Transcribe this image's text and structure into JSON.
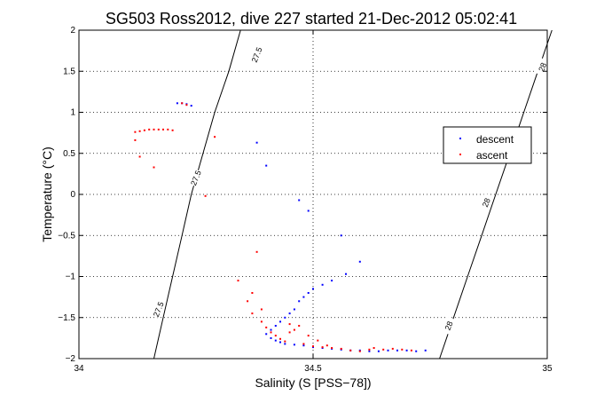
{
  "chart_data": {
    "type": "scatter",
    "title": "SG503 Ross2012, dive 227 started 21-Dec-2012 05:02:41",
    "xlabel": "Salinity (S [PSS−78])",
    "ylabel": "Temperature (°C)",
    "xlim": [
      34,
      35
    ],
    "ylim": [
      -2,
      2
    ],
    "x_ticks": [
      34,
      34.5,
      35
    ],
    "x_tick_labels": [
      "34",
      "34.5",
      "35"
    ],
    "y_ticks": [
      -2,
      -1.5,
      -1,
      -0.5,
      0,
      0.5,
      1,
      1.5,
      2
    ],
    "y_tick_labels": [
      "−2",
      "−1.5",
      "−1",
      "−0.5",
      "0",
      "0.5",
      "1",
      "1.5",
      "2"
    ],
    "grid": true,
    "legend_position": "right",
    "series": [
      {
        "name": "descent",
        "color": "#0000ff",
        "points": [
          [
            34.21,
            1.11
          ],
          [
            34.22,
            1.11
          ],
          [
            34.23,
            1.1
          ],
          [
            34.24,
            1.08
          ],
          [
            34.38,
            0.63
          ],
          [
            34.4,
            0.35
          ],
          [
            34.47,
            -0.07
          ],
          [
            34.49,
            -0.2
          ],
          [
            34.56,
            -0.5
          ],
          [
            34.6,
            -0.82
          ],
          [
            34.57,
            -0.97
          ],
          [
            34.54,
            -1.05
          ],
          [
            34.52,
            -1.1
          ],
          [
            34.5,
            -1.15
          ],
          [
            34.49,
            -1.2
          ],
          [
            34.48,
            -1.25
          ],
          [
            34.47,
            -1.3
          ],
          [
            34.46,
            -1.4
          ],
          [
            34.45,
            -1.45
          ],
          [
            34.44,
            -1.5
          ],
          [
            34.43,
            -1.55
          ],
          [
            34.42,
            -1.6
          ],
          [
            34.41,
            -1.65
          ],
          [
            34.4,
            -1.7
          ],
          [
            34.41,
            -1.75
          ],
          [
            34.42,
            -1.78
          ],
          [
            34.43,
            -1.8
          ],
          [
            34.44,
            -1.82
          ],
          [
            34.46,
            -1.83
          ],
          [
            34.48,
            -1.84
          ],
          [
            34.5,
            -1.86
          ],
          [
            34.52,
            -1.87
          ],
          [
            34.54,
            -1.88
          ],
          [
            34.56,
            -1.89
          ],
          [
            34.58,
            -1.9
          ],
          [
            34.6,
            -1.9
          ],
          [
            34.62,
            -1.91
          ],
          [
            34.64,
            -1.91
          ],
          [
            34.66,
            -1.9
          ],
          [
            34.68,
            -1.9
          ],
          [
            34.7,
            -1.9
          ],
          [
            34.72,
            -1.91
          ],
          [
            34.74,
            -1.9
          ]
        ]
      },
      {
        "name": "ascent",
        "color": "#ff0000",
        "points": [
          [
            34.12,
            0.76
          ],
          [
            34.13,
            0.77
          ],
          [
            34.14,
            0.78
          ],
          [
            34.15,
            0.79
          ],
          [
            34.16,
            0.79
          ],
          [
            34.17,
            0.79
          ],
          [
            34.18,
            0.79
          ],
          [
            34.19,
            0.79
          ],
          [
            34.2,
            0.78
          ],
          [
            34.12,
            0.66
          ],
          [
            34.13,
            0.46
          ],
          [
            34.16,
            0.33
          ],
          [
            34.22,
            1.11
          ],
          [
            34.23,
            1.09
          ],
          [
            34.29,
            0.7
          ],
          [
            34.27,
            -0.02
          ],
          [
            34.38,
            -0.7
          ],
          [
            34.34,
            -1.05
          ],
          [
            34.36,
            -1.3
          ],
          [
            34.37,
            -1.45
          ],
          [
            34.39,
            -1.55
          ],
          [
            34.4,
            -1.62
          ],
          [
            34.41,
            -1.68
          ],
          [
            34.42,
            -1.72
          ],
          [
            34.43,
            -1.76
          ],
          [
            34.44,
            -1.79
          ],
          [
            34.45,
            -1.58
          ],
          [
            34.46,
            -1.65
          ],
          [
            34.47,
            -1.6
          ],
          [
            34.48,
            -1.82
          ],
          [
            34.49,
            -1.72
          ],
          [
            34.5,
            -1.85
          ],
          [
            34.52,
            -1.86
          ],
          [
            34.54,
            -1.87
          ],
          [
            34.56,
            -1.88
          ],
          [
            34.58,
            -1.9
          ],
          [
            34.6,
            -1.91
          ],
          [
            34.62,
            -1.89
          ],
          [
            34.63,
            -1.87
          ],
          [
            34.65,
            -1.89
          ],
          [
            34.67,
            -1.88
          ],
          [
            34.69,
            -1.89
          ],
          [
            34.71,
            -1.9
          ],
          [
            34.37,
            -1.2
          ],
          [
            34.39,
            -1.4
          ],
          [
            34.45,
            -1.68
          ],
          [
            34.51,
            -1.78
          ],
          [
            34.53,
            -1.84
          ]
        ]
      }
    ],
    "contours": [
      {
        "label": "27.5",
        "path": [
          [
            34.16,
            -2
          ],
          [
            34.18,
            -1.5
          ],
          [
            34.2,
            -1.0
          ],
          [
            34.22,
            -0.5
          ],
          [
            34.24,
            0
          ],
          [
            34.265,
            0.5
          ],
          [
            34.29,
            1.0
          ],
          [
            34.32,
            1.5
          ],
          [
            34.345,
            2
          ]
        ],
        "labels_at": [
          [
            34.17,
            -1.4
          ],
          [
            34.25,
            0.2
          ],
          [
            34.38,
            1.7
          ]
        ]
      },
      {
        "label": "28",
        "path": [
          [
            34.77,
            -2
          ],
          [
            34.8,
            -1.5
          ],
          [
            34.83,
            -1.0
          ],
          [
            34.86,
            -0.5
          ],
          [
            34.89,
            0
          ],
          [
            34.92,
            0.5
          ],
          [
            34.95,
            1.0
          ],
          [
            34.98,
            1.5
          ],
          [
            35.01,
            2
          ]
        ],
        "labels_at": [
          [
            34.79,
            -1.6
          ],
          [
            34.87,
            -0.1
          ],
          [
            34.99,
            1.55
          ]
        ]
      }
    ]
  }
}
